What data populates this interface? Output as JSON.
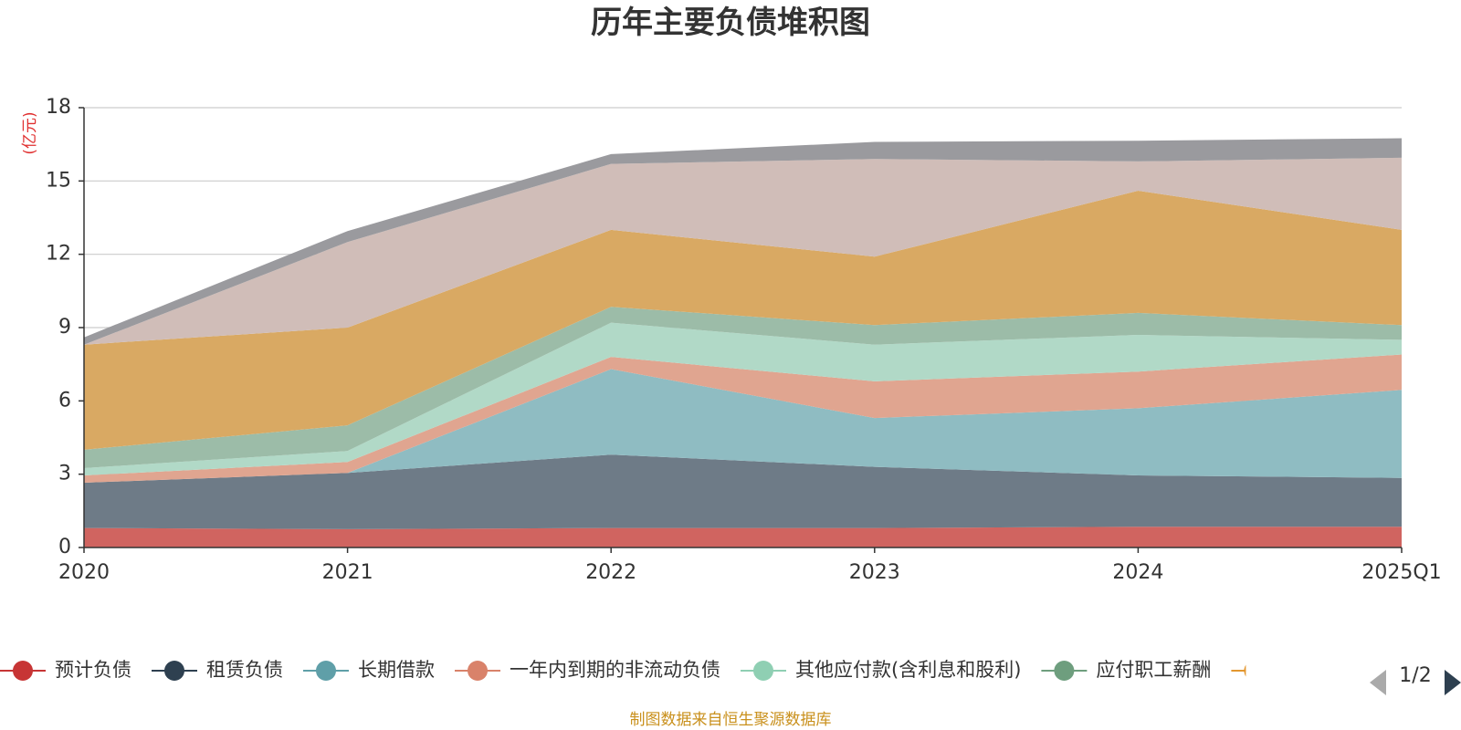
{
  "chart_data": {
    "type": "area",
    "stacked": true,
    "title": "历年主要负债堆积图",
    "unit_label": "(亿元)",
    "x": [
      "2020",
      "2021",
      "2022",
      "2023",
      "2024",
      "2025Q1"
    ],
    "ylim": [
      0,
      18
    ],
    "yticks": [
      "0",
      "3",
      "6",
      "9",
      "12",
      "15",
      "18"
    ],
    "grid": true,
    "legend_position": "bottom",
    "series": [
      {
        "name": "预计负债",
        "color": "#d06460",
        "values": [
          0.8,
          0.75,
          0.8,
          0.8,
          0.85,
          0.85
        ]
      },
      {
        "name": "租赁负债",
        "color": "#6e7b87",
        "values": [
          1.85,
          2.3,
          3.0,
          2.5,
          2.1,
          2.0
        ]
      },
      {
        "name": "长期借款",
        "color": "#8fbcc2",
        "values": [
          0.0,
          0.0,
          3.5,
          2.0,
          2.75,
          3.6
        ]
      },
      {
        "name": "一年内到期的非流动负债",
        "color": "#e0a590",
        "values": [
          0.3,
          0.45,
          0.5,
          1.5,
          1.5,
          1.45
        ]
      },
      {
        "name": "其他应付款(含利息和股利)",
        "color": "#b1d9c7",
        "values": [
          0.3,
          0.45,
          1.4,
          1.5,
          1.5,
          0.6
        ]
      },
      {
        "name": "应付职工薪酬",
        "color": "#9cbca8",
        "values": [
          0.75,
          1.05,
          0.65,
          0.8,
          0.9,
          0.6
        ]
      },
      {
        "name": "",
        "color": "#d9a963",
        "values": [
          4.3,
          4.0,
          3.15,
          2.8,
          5.0,
          3.9
        ]
      },
      {
        "name": "",
        "color": "#d0bdb8",
        "values": [
          0.0,
          3.5,
          2.7,
          4.0,
          1.2,
          2.95
        ]
      },
      {
        "name": "",
        "color": "#9a9a9e",
        "values": [
          0.3,
          0.45,
          0.4,
          0.7,
          0.85,
          0.8
        ]
      }
    ],
    "legend_colors": [
      "#c73535",
      "#2e4050",
      "#5f9fa8",
      "#d9826a",
      "#8fcfb3",
      "#6e9e7e",
      "#e3972f"
    ]
  },
  "pager": {
    "text": "1/2"
  },
  "source": "制图数据来自恒生聚源数据库"
}
